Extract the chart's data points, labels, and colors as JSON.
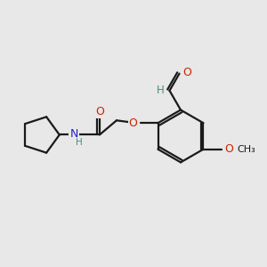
{
  "background_color": "#e8e8e8",
  "bond_color": "#1a1a1a",
  "atom_colors": {
    "O": "#cc2200",
    "N": "#2222cc",
    "H": "#4a8888",
    "C": "#1a1a1a"
  },
  "figsize": [
    3.0,
    3.0
  ],
  "dpi": 100
}
